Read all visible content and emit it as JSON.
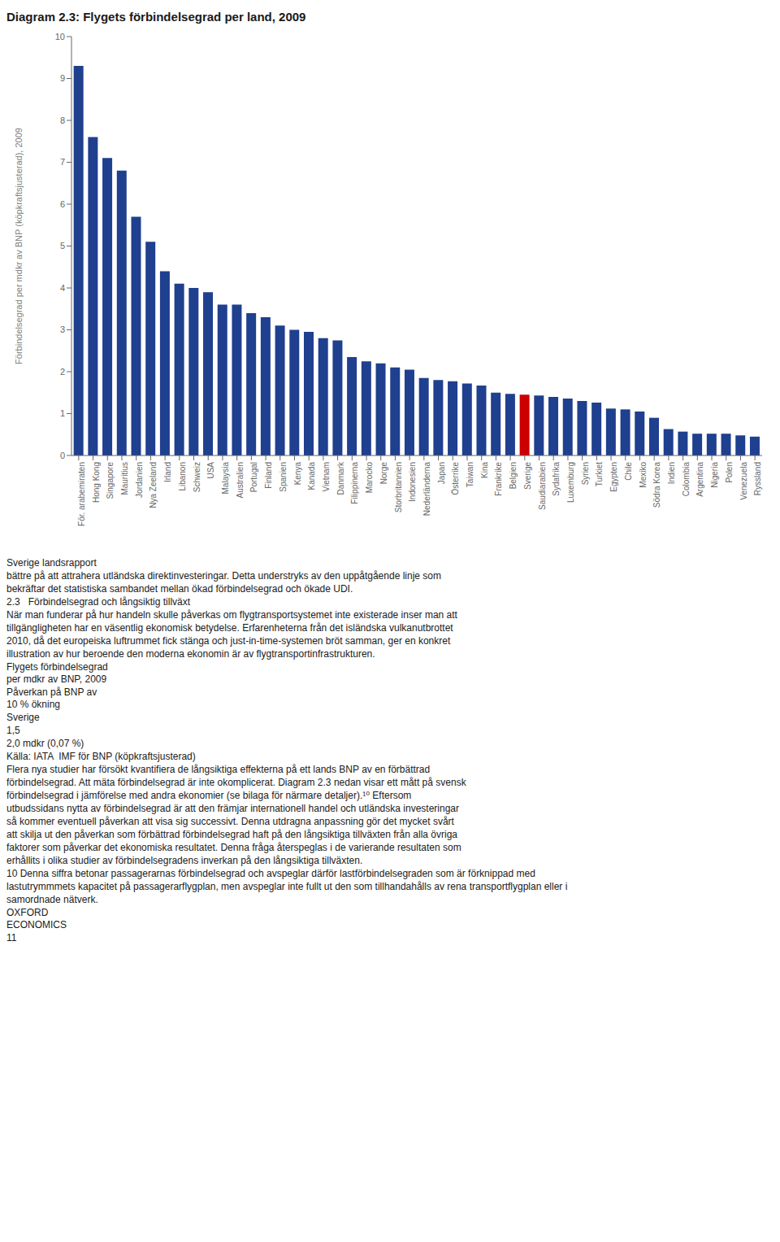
{
  "chart_data": {
    "type": "bar",
    "title": "Diagram 2.3: Flygets förbindelsegrad per land, 2009",
    "ylabel": "Förbindelsegrad per mdkr av BNP (köpkraftsjusterad), 2009",
    "categories": [
      "För. arabemiraten",
      "Hong Kong",
      "Singapore",
      "Mauritius",
      "Jordanien",
      "Nya Zeeland",
      "Irland",
      "Libanon",
      "Schweiz",
      "USA",
      "Malaysia",
      "Australien",
      "Portugal",
      "Finland",
      "Spanien",
      "Kenya",
      "Kanada",
      "Vietnam",
      "Danmark",
      "Filippinerna",
      "Marocko",
      "Norge",
      "Storbritannien",
      "Indonesien",
      "Nederländerna",
      "Japan",
      "Österrike",
      "Taiwan",
      "Kina",
      "Frankrike",
      "Belgien",
      "Sverige",
      "Saudiarabien",
      "Sydafrika",
      "Luxemburg",
      "Syrien",
      "Turkiet",
      "Egypten",
      "Chile",
      "Mexiko",
      "Södra Korea",
      "Indien",
      "Colombia",
      "Argentina",
      "Nigeria",
      "Polen",
      "Venezuela",
      "Ryssland"
    ],
    "values": [
      9.3,
      7.6,
      7.1,
      6.8,
      5.7,
      5.1,
      4.4,
      4.1,
      4.0,
      3.9,
      3.6,
      3.6,
      3.4,
      3.3,
      3.1,
      3.0,
      2.95,
      2.8,
      2.75,
      2.35,
      2.25,
      2.2,
      2.1,
      2.05,
      1.85,
      1.8,
      1.77,
      1.72,
      1.67,
      1.5,
      1.47,
      1.45,
      1.43,
      1.4,
      1.36,
      1.3,
      1.26,
      1.12,
      1.1,
      1.05,
      0.9,
      0.63,
      0.57,
      0.52,
      0.52,
      0.52,
      0.48,
      0.45
    ],
    "colors": [
      "#1f3f8f",
      "#1f3f8f",
      "#1f3f8f",
      "#1f3f8f",
      "#1f3f8f",
      "#1f3f8f",
      "#1f3f8f",
      "#1f3f8f",
      "#1f3f8f",
      "#1f3f8f",
      "#1f3f8f",
      "#1f3f8f",
      "#1f3f8f",
      "#1f3f8f",
      "#1f3f8f",
      "#1f3f8f",
      "#1f3f8f",
      "#1f3f8f",
      "#1f3f8f",
      "#1f3f8f",
      "#1f3f8f",
      "#1f3f8f",
      "#1f3f8f",
      "#1f3f8f",
      "#1f3f8f",
      "#1f3f8f",
      "#1f3f8f",
      "#1f3f8f",
      "#1f3f8f",
      "#1f3f8f",
      "#1f3f8f",
      "#cc0000",
      "#1f3f8f",
      "#1f3f8f",
      "#1f3f8f",
      "#1f3f8f",
      "#1f3f8f",
      "#1f3f8f",
      "#1f3f8f",
      "#1f3f8f",
      "#1f3f8f",
      "#1f3f8f",
      "#1f3f8f",
      "#1f3f8f",
      "#1f3f8f",
      "#1f3f8f",
      "#1f3f8f",
      "#1f3f8f"
    ],
    "ylim": [
      0,
      10
    ],
    "yticks": [
      0,
      1,
      2,
      3,
      4,
      5,
      6,
      7,
      8,
      9,
      10
    ],
    "grid": false,
    "annotations": [
      "Sverige landsrapport",
      "bättre på att attrahera utländska direktinvesteringar. Detta understryks av den uppåtgående linje som",
      "bekräftar det statistiska sambandet mellan ökad förbindelsegrad och ökade UDI.",
      "2.3   Förbindelsegrad och långsiktig tillväxt",
      "När man funderar på hur handeln skulle påverkas om flygtransportsystemet inte existerade inser man att",
      "tillgängligheten har en väsentlig ekonomisk betydelse. Erfarenheterna från det isländska vulkanutbrottet",
      "2010, då det europeiska luftrummet fick stänga och just-in-time-systemen bröt samman, ger en konkret",
      "illustration av hur beroende den moderna ekonomin är av flygtransportinfrastrukturen.",
      "Flygets förbindelsegrad\nper mdkr av BNP, 2009",
      "Påverkan på BNP av\n10 % ökning",
      "Sverige",
      "1,5",
      "2,0 mdkr (0,07 %)",
      "Källa: IATA  IMF för BNP (köpkraftsjusterad)",
      "Flera nya studier har försökt kvantifiera de långsiktiga effekterna på ett lands BNP av en förbättrad",
      "förbindelsegrad. Att mäta förbindelsegrad är inte okomplicerat. Diagram 2.3 nedan visar ett mått på svensk",
      "förbindelsegrad i jämförelse med andra ekonomier (se bilaga för närmare detaljer).¹⁰ Eftersom",
      "utbudssidans nytta av förbindelsegrad är att den främjar internationell handel och utländska investeringar",
      "så kommer eventuell påverkan att visa sig successivt. Denna utdragna anpassning gör det mycket svårt",
      "att skilja ut den påverkan som förbättrad förbindelsegrad haft på den långsiktiga tillväxten från alla övriga",
      "faktorer som påverkar det ekonomiska resultatet. Denna fråga återspeglas i de varierande resultaten som",
      "erhållits i olika studier av förbindelsegradens inverkan på den långsiktiga tillväxten.",
      "10 Denna siffra betonar passagerarnas förbindelsegrad och avspeglar därför lastförbindelsegraden som är förknippad med",
      "lastutrymmmets kapacitet på passagerarflygplan, men avspeglar inte fullt ut den som tillhandahålls av rena transportflygplan eller i",
      "samordnade nätverk.",
      "OXFORD\nECONOMICS",
      "11"
    ]
  }
}
